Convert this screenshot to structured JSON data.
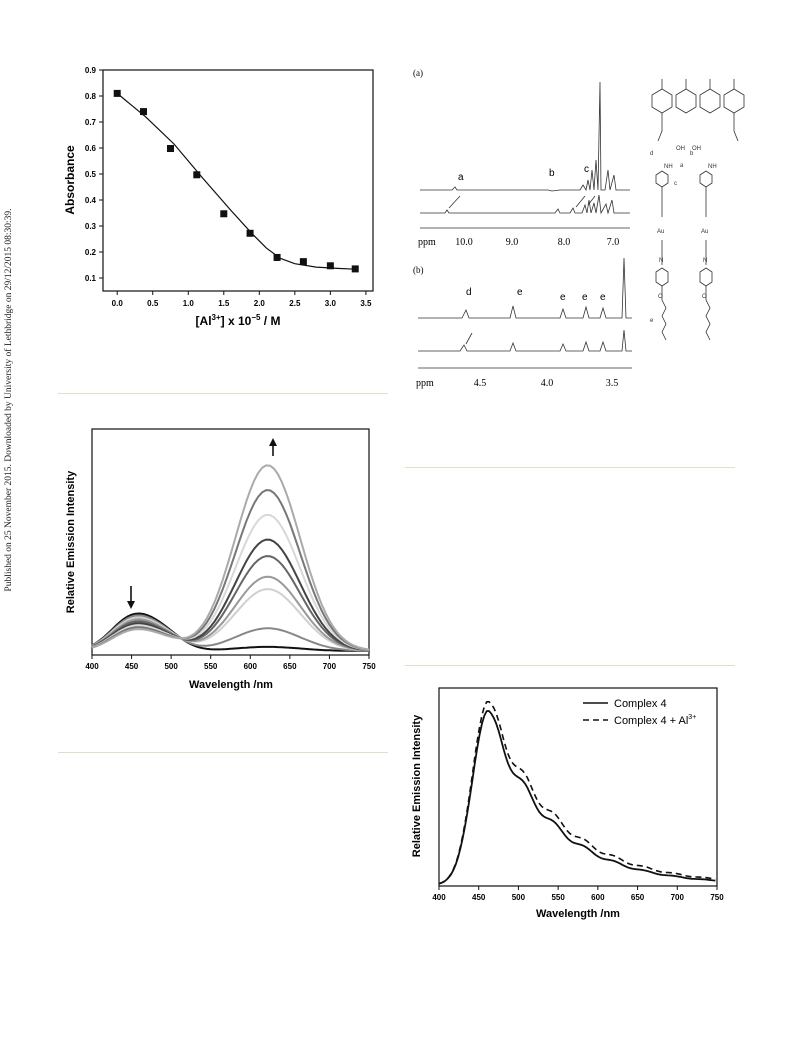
{
  "sidebar_note": "Published on 25 November 2015. Downloaded by University of Lethbridge on 29/12/2015 08:30:39.",
  "chart_data": [
    {
      "id": "absorbance",
      "type": "scatter",
      "title": "",
      "xlabel_main": "[Al",
      "xlabel_sup": "3+",
      "xlabel_mid": "] x 10",
      "xlabel_sup2": "−5",
      "xlabel_end": " / M",
      "ylabel": "Absorbance",
      "xlim": [
        -0.2,
        3.6
      ],
      "ylim": [
        0.05,
        0.9
      ],
      "xticks": [
        "0.0",
        "0.5",
        "1.0",
        "1.5",
        "2.0",
        "2.5",
        "3.0",
        "3.5"
      ],
      "yticks": [
        "0.1",
        "0.2",
        "0.3",
        "0.4",
        "0.5",
        "0.6",
        "0.7",
        "0.8",
        "0.9"
      ],
      "x": [
        0.0,
        0.37,
        0.75,
        1.12,
        1.5,
        1.87,
        2.25,
        2.62,
        3.0,
        3.35
      ],
      "y": [
        0.81,
        0.74,
        0.598,
        0.497,
        0.347,
        0.272,
        0.179,
        0.163,
        0.147,
        0.135
      ],
      "fit_x": [
        0.0,
        0.4,
        0.8,
        1.2,
        1.6,
        1.9,
        2.1,
        2.3,
        2.5,
        2.8,
        3.1,
        3.35
      ],
      "fit_y": [
        0.81,
        0.72,
        0.615,
        0.485,
        0.36,
        0.27,
        0.215,
        0.175,
        0.155,
        0.142,
        0.137,
        0.134
      ]
    },
    {
      "id": "nmr",
      "type": "line",
      "panel_a_label": "(a)",
      "panel_b_label": "(b)",
      "axis_a_label": "ppm",
      "axis_b_label": "ppm",
      "ticks_a": [
        "10.0",
        "9.0",
        "8.0",
        "7.0"
      ],
      "ticks_b": [
        "4.5",
        "4.0",
        "3.5"
      ],
      "peaks_a": [
        "a",
        "b",
        "c"
      ],
      "peaks_b": [
        "d",
        "e",
        "e",
        "e",
        "e"
      ],
      "structure_labels": [
        "d",
        "a",
        "c",
        "b",
        "OH",
        "OH",
        "Au",
        "Au",
        "N",
        "N",
        "NH",
        "NH",
        "O",
        "O",
        "e"
      ]
    },
    {
      "id": "emission_titration",
      "type": "line",
      "title": "",
      "xlabel": "Wavelength /nm",
      "ylabel": "Relative Emission Intensity",
      "xlim": [
        400,
        750
      ],
      "xticks": [
        "400",
        "450",
        "500",
        "550",
        "600",
        "650",
        "700",
        "750"
      ],
      "peaks": [
        0.04,
        0.22,
        0.6,
        0.72,
        0.92,
        1.08,
        1.32,
        1.56,
        1.8
      ],
      "colors": [
        "#111111",
        "#888888",
        "#d0d0d0",
        "#999999",
        "#666666",
        "#444444",
        "#d8d8d8",
        "#777777",
        "#aaaaaa"
      ]
    },
    {
      "id": "emission_complex4",
      "type": "line",
      "title": "",
      "xlabel": "Wavelength /nm",
      "ylabel": "Relative Emission Intensity",
      "xlim": [
        400,
        750
      ],
      "xticks": [
        "400",
        "450",
        "500",
        "550",
        "600",
        "650",
        "700",
        "750"
      ],
      "series": [
        {
          "name": "Complex 4",
          "style": "solid"
        },
        {
          "name": "Complex 4 + Al",
          "name_sup": "3+",
          "style": "dashed"
        }
      ]
    }
  ]
}
